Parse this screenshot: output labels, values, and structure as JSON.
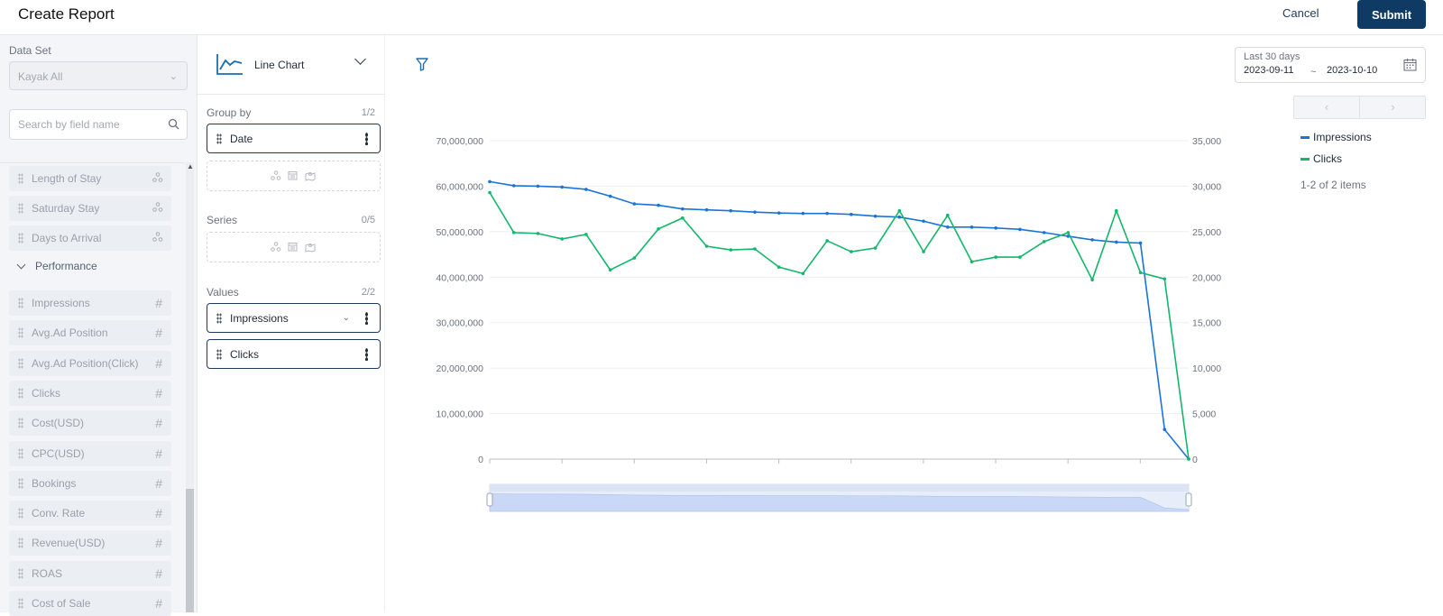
{
  "header": {
    "title": "Create Report",
    "cancel_label": "Cancel",
    "submit_label": "Submit"
  },
  "left_panel": {
    "dataset_label": "Data Set",
    "dataset_value": "Kayak All",
    "search_placeholder": "Search by field name",
    "fields_top": [
      {
        "label": "Length of Stay",
        "icon": "dimension-icon"
      },
      {
        "label": "Saturday Stay",
        "icon": "dimension-icon"
      },
      {
        "label": "Days to Arrival",
        "icon": "dimension-icon"
      }
    ],
    "performance_label": "Performance",
    "metrics": [
      {
        "label": "Impressions",
        "icon": "hash-icon"
      },
      {
        "label": "Avg.Ad Position",
        "icon": "hash-icon"
      },
      {
        "label": "Avg.Ad Position(Click)",
        "icon": "hash-icon"
      },
      {
        "label": "Clicks",
        "icon": "hash-icon"
      },
      {
        "label": "Cost(USD)",
        "icon": "hash-icon"
      },
      {
        "label": "CPC(USD)",
        "icon": "hash-icon"
      },
      {
        "label": "Bookings",
        "icon": "hash-icon"
      },
      {
        "label": "Conv. Rate",
        "icon": "hash-icon"
      },
      {
        "label": "Revenue(USD)",
        "icon": "hash-icon"
      },
      {
        "label": "ROAS",
        "icon": "hash-icon"
      },
      {
        "label": "Cost of Sale",
        "icon": "hash-icon"
      }
    ]
  },
  "config": {
    "chart_type": "Line Chart",
    "group_by": {
      "title": "Group by",
      "count": "1/2",
      "items": [
        "Date"
      ]
    },
    "series": {
      "title": "Series",
      "count": "0/5"
    },
    "values": {
      "title": "Values",
      "count": "2/2",
      "items": [
        "Impressions",
        "Clicks"
      ]
    }
  },
  "date_range": {
    "label": "Last 30 days",
    "start": "2023-09-11",
    "separator": "~",
    "end": "2023-10-10"
  },
  "legend": {
    "items": [
      {
        "label": "Impressions",
        "color": "#1a73d9"
      },
      {
        "label": "Clicks",
        "color": "#12b76a"
      }
    ],
    "count_text": "1-2 of 2 items"
  },
  "colors": {
    "accent": "#0f3a63",
    "impressions": "#1a73d9",
    "clicks": "#12b76a"
  },
  "chart_data": {
    "type": "line",
    "x_count": 30,
    "y_left": {
      "ylim": [
        0,
        70000000
      ],
      "ticks": [
        "0",
        "10,000,000",
        "20,000,000",
        "30,000,000",
        "40,000,000",
        "50,000,000",
        "60,000,000",
        "70,000,000"
      ],
      "tick_values": [
        0,
        10000000,
        20000000,
        30000000,
        40000000,
        50000000,
        60000000,
        70000000
      ]
    },
    "y_right": {
      "ylim": [
        0,
        35000
      ],
      "ticks": [
        "0",
        "5,000",
        "10,000",
        "15,000",
        "20,000",
        "25,000",
        "30,000",
        "35,000"
      ],
      "tick_values": [
        0,
        5000,
        10000,
        15000,
        20000,
        25000,
        30000,
        35000
      ]
    },
    "series": [
      {
        "name": "Impressions",
        "axis": "left",
        "values": [
          61000000,
          60100000,
          60000000,
          59800000,
          59300000,
          57800000,
          56100000,
          55800000,
          55000000,
          54800000,
          54600000,
          54300000,
          54100000,
          54000000,
          54000000,
          53800000,
          53400000,
          53200000,
          52300000,
          51000000,
          51000000,
          50800000,
          50500000,
          49800000,
          49000000,
          48200000,
          47700000,
          47500000,
          6500000,
          0
        ]
      },
      {
        "name": "Clicks",
        "axis": "right",
        "values": [
          29300,
          24900,
          24800,
          24200,
          24700,
          20800,
          22100,
          25300,
          26500,
          23400,
          23000,
          23100,
          21100,
          20400,
          24000,
          22800,
          23200,
          27300,
          22800,
          26800,
          21700,
          22200,
          22200,
          23900,
          24900,
          19700,
          27300,
          20500,
          19800,
          0
        ]
      }
    ],
    "grid": true,
    "legend_position": "right"
  }
}
